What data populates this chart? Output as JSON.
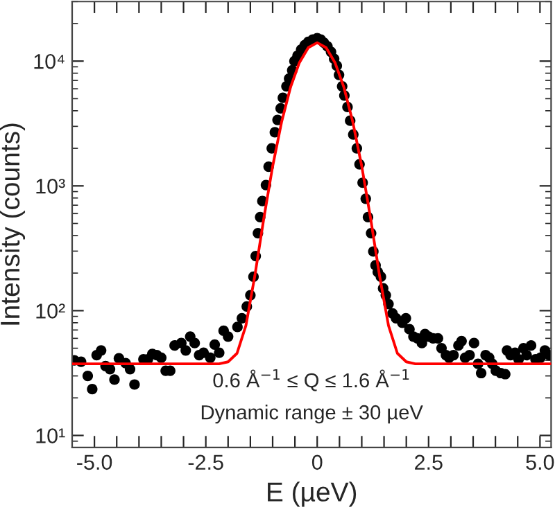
{
  "chart_data": {
    "type": "scatter",
    "xlabel": "E (µeV)",
    "ylabel": "Intensity (counts)",
    "annotations": [
      "0.6 Å$^{−1}$ ≤ Q ≤ 1.6 Å$^{−1}$",
      "Dynamic range ± 30 µeV"
    ],
    "log": "y",
    "xlim": [
      -5.5,
      5.25
    ],
    "xticks": [
      {
        "value": -5,
        "label": "-5.0"
      },
      {
        "value": -4.5,
        "label": null
      },
      {
        "value": -4,
        "label": null
      },
      {
        "value": -3.5,
        "label": null
      },
      {
        "value": -3,
        "label": null
      },
      {
        "value": -2.5,
        "label": "-2.5"
      },
      {
        "value": -2,
        "label": null
      },
      {
        "value": -1.5,
        "label": null
      },
      {
        "value": -1,
        "label": null
      },
      {
        "value": -0.5,
        "label": null
      },
      0,
      {
        "value": 0.5,
        "label": null
      },
      {
        "value": 1,
        "label": null
      },
      {
        "value": 1.5,
        "label": null
      },
      {
        "value": 2,
        "label": null
      },
      2.5,
      {
        "value": 3,
        "label": null
      },
      {
        "value": 3.5,
        "label": null
      },
      {
        "value": 4,
        "label": null
      },
      {
        "value": 4.5,
        "label": null
      },
      {
        "value": 5,
        "label": "5.0"
      }
    ],
    "ylim": [
      8,
      30000
    ],
    "yticks": [
      {
        "value": 10,
        "label": "10¹"
      },
      {
        "value": 100,
        "label": "10²"
      },
      {
        "value": 1000,
        "label": "10³"
      },
      {
        "value": 10000,
        "label": "10⁴"
      }
    ],
    "grid": false,
    "legend": false,
    "series": [
      {
        "color": "#000000",
        "marker": "circle",
        "x": [
          -5.45,
          -5.3,
          -5.15,
          -5.05,
          -4.95,
          -4.85,
          -4.75,
          -4.65,
          -4.55,
          -4.45,
          -4.3,
          -4.2,
          -4.1,
          -3.9,
          -3.8,
          -3.7,
          -3.6,
          -3.5,
          -3.4,
          -3.3,
          -3.2,
          -3.05,
          -2.95,
          -2.85,
          -2.75,
          -2.65,
          -2.55,
          -2.4,
          -2.3,
          -2.2,
          -2.1,
          -2.0,
          -1.79,
          -1.69,
          -1.58,
          -1.5,
          -1.43,
          -1.38,
          -1.33,
          -1.28,
          -1.23,
          -1.15,
          -1.09,
          -1.02,
          -0.95,
          -0.89,
          -0.82,
          -0.77,
          -0.69,
          -0.63,
          -0.56,
          -0.51,
          -0.44,
          -0.36,
          -0.28,
          -0.2,
          -0.1,
          0.0,
          0.08,
          0.15,
          0.23,
          0.31,
          0.38,
          0.44,
          0.49,
          0.56,
          0.61,
          0.68,
          0.74,
          0.81,
          0.89,
          0.95,
          1.02,
          1.09,
          1.14,
          1.21,
          1.26,
          1.31,
          1.36,
          1.43,
          1.48,
          1.54,
          1.6,
          1.69,
          1.77,
          1.91,
          1.99,
          2.07,
          2.16,
          2.25,
          2.35,
          2.42,
          2.5,
          2.6,
          2.71,
          2.79,
          2.89,
          2.96,
          3.06,
          3.17,
          3.24,
          3.32,
          3.42,
          3.52,
          3.61,
          3.68,
          3.78,
          3.86,
          3.93,
          4.01,
          4.12,
          4.22,
          4.26,
          4.34,
          4.44,
          4.52,
          4.63,
          4.7,
          4.8,
          4.9,
          5.01,
          5.11,
          5.21
        ],
        "values": [
          40,
          39,
          30,
          23.5,
          44,
          48,
          36,
          34,
          28,
          41.5,
          38,
          34,
          25.6,
          40.8,
          40.8,
          45,
          44,
          42,
          33,
          33,
          52.6,
          55,
          48,
          62,
          55,
          44,
          46,
          42,
          53.5,
          46,
          69,
          62,
          74,
          87,
          108,
          133,
          187,
          274,
          418,
          562,
          756,
          1016,
          1426,
          2000,
          2690,
          3380,
          4180,
          5080,
          6280,
          7240,
          8440,
          10000,
          11070,
          12360,
          13450,
          14260,
          14880,
          15280,
          14880,
          14030,
          13120,
          11860,
          10430,
          9180,
          7760,
          6280,
          5300,
          4290,
          3330,
          2580,
          2000,
          1490,
          1060,
          789,
          562,
          418,
          298,
          231,
          204,
          187,
          151,
          133,
          113,
          95,
          87,
          80,
          87,
          71,
          62,
          60,
          55,
          65,
          62,
          60,
          60,
          50,
          44,
          42,
          44,
          52.6,
          57,
          42,
          44,
          55,
          37.5,
          31.6,
          44,
          42,
          37.5,
          33,
          31.6,
          31,
          48,
          44,
          46,
          40.8,
          50,
          44,
          52.6,
          40.8,
          42,
          48,
          44
        ]
      },
      {
        "type": "line",
        "color": "#ff0000",
        "marker": "none",
        "line_style": "solid",
        "x": [
          -5.5,
          -2.5,
          -2.2,
          -2.0,
          -1.8,
          -1.6,
          -1.4,
          -1.2,
          -1.0,
          -0.8,
          -0.6,
          -0.4,
          -0.2,
          0.0,
          0.2,
          0.4,
          0.6,
          0.8,
          1.0,
          1.2,
          1.4,
          1.6,
          1.8,
          2.0,
          2.2,
          2.5,
          5.25
        ],
        "values": [
          37.5,
          37.5,
          37.5,
          38.9,
          45.5,
          76,
          190,
          544,
          1436,
          3240,
          6150,
          9720,
          12810,
          14040,
          12810,
          9720,
          6150,
          3240,
          1436,
          544,
          190,
          76,
          45.5,
          38.9,
          37.5,
          37.5,
          37.5
        ]
      }
    ]
  }
}
